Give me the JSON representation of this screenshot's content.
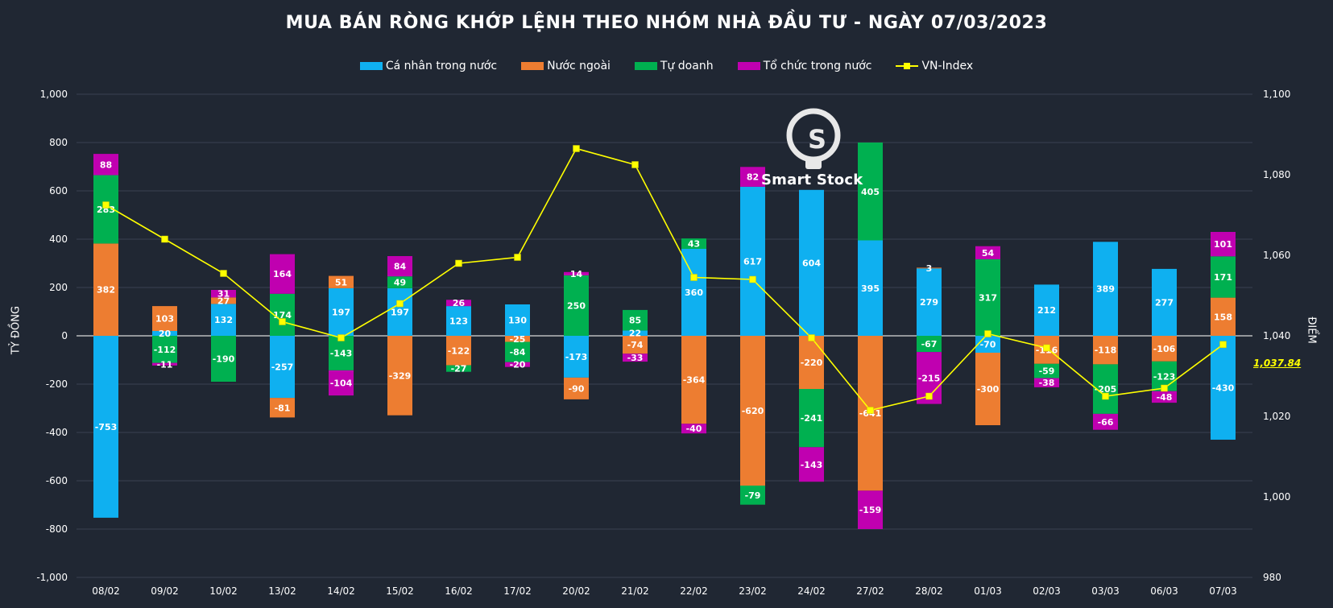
{
  "title": "MUA BÁN RÒNG KHỚP LỆNH THEO NHÓM NHÀ ĐẦU TƯ - NGÀY 07/03/2023",
  "logo_text": "Smart Stock",
  "chart_data": {
    "type": "bar",
    "stacked": true,
    "title": "MUA BÁN RÒNG KHỚP LỆNH THEO NHÓM NHÀ ĐẦU TƯ - NGÀY 07/03/2023",
    "ylabel_left": "TỶ ĐỒNG",
    "ylabel_right": "ĐIỂM",
    "ylim_left": [
      -1000,
      1000
    ],
    "ylim_right": [
      980,
      1100
    ],
    "yticks_left": [
      "-1,000",
      "-800",
      "-600",
      "-400",
      "-200",
      "0",
      "200",
      "400",
      "600",
      "800",
      "1,000"
    ],
    "yticks_right": [
      "980",
      "1,000",
      "1,020",
      "1,040",
      "1,060",
      "1,080",
      "1,100"
    ],
    "categories": [
      "08/02",
      "09/02",
      "10/02",
      "13/02",
      "14/02",
      "15/02",
      "16/02",
      "17/02",
      "20/02",
      "21/02",
      "22/02",
      "23/02",
      "24/02",
      "27/02",
      "28/02",
      "01/03",
      "02/03",
      "03/03",
      "06/03",
      "07/03"
    ],
    "series": [
      {
        "name": "Cá nhân trong nước",
        "color": "#0fb0f0",
        "values": [
          -753,
          20,
          132,
          -257,
          197,
          197,
          123,
          130,
          -173,
          22,
          360,
          617,
          604,
          395,
          279,
          -70,
          212,
          389,
          277,
          -430
        ],
        "labels": [
          "-753",
          "20",
          "132",
          "-257",
          "197",
          "197",
          "123",
          "130",
          "-173",
          "22",
          "360",
          "617",
          "604",
          "395",
          "279",
          "-70",
          "212",
          "389",
          "277",
          "-430"
        ]
      },
      {
        "name": "Nước ngoài",
        "color": "#ed7d31",
        "values": [
          382,
          103,
          27,
          -81,
          51,
          -329,
          -122,
          -25,
          -90,
          -74,
          -364,
          -620,
          -220,
          -641,
          3,
          -300,
          -116,
          -118,
          -106,
          158
        ],
        "labels": [
          "382",
          "103",
          "27",
          "-81",
          "51",
          "-329",
          "-122",
          "-25",
          "-90",
          "-74",
          "-364",
          "-620",
          "-220",
          "-641",
          "3",
          "-300",
          "-116",
          "-118",
          "-106",
          "158"
        ]
      },
      {
        "name": "Tự doanh",
        "color": "#00b050",
        "values": [
          283,
          -112,
          -190,
          174,
          -143,
          49,
          -27,
          -84,
          250,
          85,
          43,
          -79,
          -241,
          405,
          -67,
          317,
          -59,
          -205,
          -123,
          171
        ],
        "labels": [
          "283",
          "-112",
          "-190",
          "174",
          "-143",
          "49",
          "-27",
          "-84",
          "250",
          "85",
          "43",
          "-79",
          "-241",
          "405",
          "-67",
          "317",
          "-59",
          "-205",
          "-123",
          "171"
        ]
      },
      {
        "name": "Tổ chức trong nước",
        "color": "#c000b0",
        "values": [
          88,
          -11,
          31,
          164,
          -104,
          84,
          26,
          -20,
          14,
          -33,
          -40,
          82,
          -143,
          -159,
          -215,
          54,
          -38,
          -66,
          -48,
          101
        ],
        "labels": [
          "88",
          "-11",
          "31",
          "164",
          "-104",
          "84",
          "26",
          "-20",
          "14",
          "-33",
          "-40",
          "82",
          "-143",
          "-159",
          "-215",
          "54",
          "-38",
          "-66",
          "-48",
          "101"
        ]
      }
    ],
    "line_series": {
      "name": "VN-Index",
      "color": "#ffff00",
      "axis": "right",
      "values": [
        1072.5,
        1064.0,
        1055.5,
        1043.5,
        1039.5,
        1048.0,
        1058.0,
        1059.5,
        1086.5,
        1082.5,
        1054.5,
        1054.0,
        1039.5,
        1021.5,
        1025.0,
        1040.5,
        1037.0,
        1025.0,
        1027.0,
        1037.84
      ]
    },
    "last_value_label": "1,037.84"
  }
}
